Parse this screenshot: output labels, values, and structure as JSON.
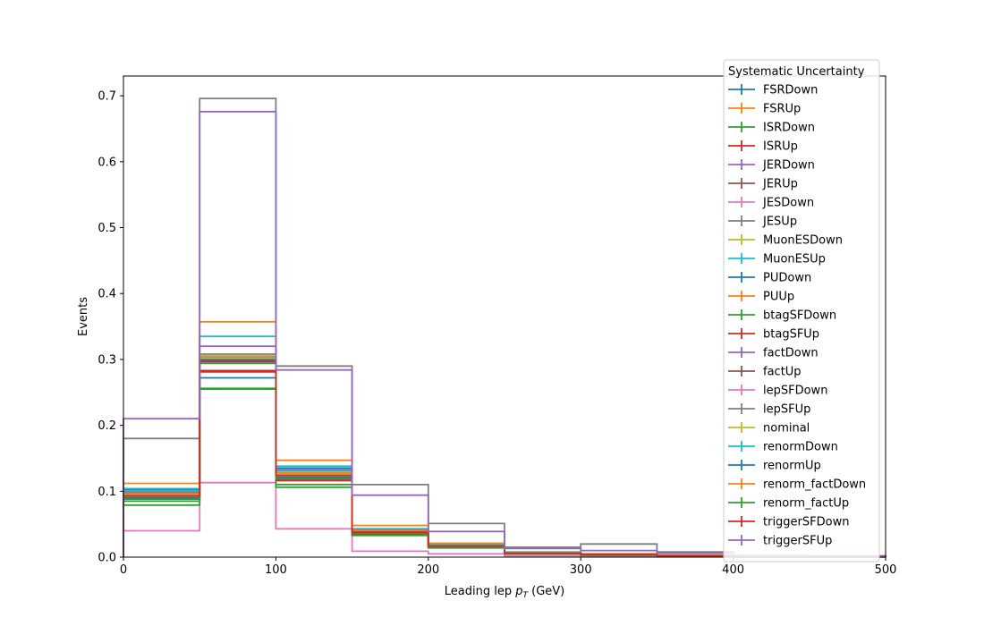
{
  "chart_data": {
    "type": "step-histogram",
    "xlabel_prefix": "Leading lep ",
    "xlabel_var": "p",
    "xlabel_sub": "T",
    "xlabel_suffix": " (GeV)",
    "ylabel": "Events",
    "xlim": [
      0,
      500
    ],
    "ylim": [
      0,
      0.73
    ],
    "xticks": [
      0,
      100,
      200,
      300,
      400,
      500
    ],
    "yticks": [
      0.0,
      0.1,
      0.2,
      0.3,
      0.4,
      0.5,
      0.6,
      0.7
    ],
    "xtick_labels": [
      "0",
      "100",
      "200",
      "300",
      "400",
      "500"
    ],
    "ytick_labels": [
      "0.0",
      "0.1",
      "0.2",
      "0.3",
      "0.4",
      "0.5",
      "0.6",
      "0.7"
    ],
    "bin_edges": [
      0,
      50,
      100,
      150,
      200,
      250,
      300,
      350,
      400,
      450,
      500
    ],
    "legend_title": "Systematic Uncertainty",
    "legend_position": "upper-right",
    "series": [
      {
        "name": "FSRDown",
        "color": "#1f77b4",
        "values": [
          0.095,
          0.272,
          0.12,
          0.036,
          0.016,
          0.006,
          0.004,
          0.002,
          0.001,
          0.001
        ]
      },
      {
        "name": "FSRUp",
        "color": "#ff7f0e",
        "values": [
          0.1,
          0.3,
          0.125,
          0.04,
          0.018,
          0.007,
          0.004,
          0.002,
          0.001,
          0.001
        ]
      },
      {
        "name": "ISRDown",
        "color": "#2ca02c",
        "values": [
          0.085,
          0.256,
          0.11,
          0.034,
          0.015,
          0.005,
          0.003,
          0.002,
          0.001,
          0.001
        ]
      },
      {
        "name": "ISRUp",
        "color": "#d62728",
        "values": [
          0.09,
          0.283,
          0.118,
          0.037,
          0.016,
          0.006,
          0.004,
          0.002,
          0.001,
          0.001
        ]
      },
      {
        "name": "JERDown",
        "color": "#9467bd",
        "values": [
          0.097,
          0.3,
          0.125,
          0.039,
          0.017,
          0.006,
          0.004,
          0.002,
          0.001,
          0.001
        ]
      },
      {
        "name": "JERUp",
        "color": "#8c564b",
        "values": [
          0.095,
          0.295,
          0.123,
          0.038,
          0.017,
          0.006,
          0.004,
          0.002,
          0.001,
          0.001
        ]
      },
      {
        "name": "JESDown",
        "color": "#e377c2",
        "values": [
          0.04,
          0.113,
          0.043,
          0.009,
          0.005,
          0.002,
          0.001,
          0.001,
          0.0,
          0.0
        ]
      },
      {
        "name": "JESUp",
        "color": "#7f7f7f",
        "values": [
          0.18,
          0.696,
          0.29,
          0.11,
          0.051,
          0.015,
          0.02,
          0.008,
          0.003,
          0.002
        ]
      },
      {
        "name": "MuonESDown",
        "color": "#bcbd22",
        "values": [
          0.093,
          0.298,
          0.122,
          0.038,
          0.017,
          0.006,
          0.004,
          0.002,
          0.001,
          0.001
        ]
      },
      {
        "name": "MuonESUp",
        "color": "#17becf",
        "values": [
          0.104,
          0.335,
          0.138,
          0.043,
          0.019,
          0.007,
          0.005,
          0.002,
          0.001,
          0.001
        ]
      },
      {
        "name": "PUDown",
        "color": "#1f77b4",
        "values": [
          0.102,
          0.302,
          0.135,
          0.041,
          0.018,
          0.007,
          0.004,
          0.002,
          0.001,
          0.001
        ]
      },
      {
        "name": "PUUp",
        "color": "#ff7f0e",
        "values": [
          0.112,
          0.357,
          0.147,
          0.048,
          0.021,
          0.008,
          0.005,
          0.003,
          0.001,
          0.001
        ]
      },
      {
        "name": "btagSFDown",
        "color": "#2ca02c",
        "values": [
          0.079,
          0.255,
          0.106,
          0.033,
          0.014,
          0.005,
          0.003,
          0.002,
          0.001,
          0.001
        ]
      },
      {
        "name": "btagSFUp",
        "color": "#d62728",
        "values": [
          0.091,
          0.281,
          0.116,
          0.036,
          0.016,
          0.006,
          0.004,
          0.002,
          0.001,
          0.001
        ]
      },
      {
        "name": "factDown",
        "color": "#9467bd",
        "values": [
          0.099,
          0.32,
          0.133,
          0.041,
          0.018,
          0.007,
          0.004,
          0.002,
          0.001,
          0.001
        ]
      },
      {
        "name": "factUp",
        "color": "#8c564b",
        "values": [
          0.094,
          0.302,
          0.126,
          0.039,
          0.017,
          0.006,
          0.004,
          0.002,
          0.001,
          0.001
        ]
      },
      {
        "name": "lepSFDown",
        "color": "#e377c2",
        "values": [
          0.092,
          0.296,
          0.123,
          0.038,
          0.017,
          0.006,
          0.004,
          0.002,
          0.001,
          0.001
        ]
      },
      {
        "name": "lepSFUp",
        "color": "#7f7f7f",
        "values": [
          0.098,
          0.308,
          0.128,
          0.04,
          0.018,
          0.006,
          0.004,
          0.002,
          0.001,
          0.001
        ]
      },
      {
        "name": "nominal",
        "color": "#bcbd22",
        "values": [
          0.095,
          0.302,
          0.126,
          0.039,
          0.017,
          0.006,
          0.004,
          0.002,
          0.001,
          0.001
        ]
      },
      {
        "name": "renormDown",
        "color": "#17becf",
        "values": [
          0.101,
          0.304,
          0.131,
          0.04,
          0.018,
          0.007,
          0.004,
          0.002,
          0.001,
          0.001
        ]
      },
      {
        "name": "renormUp",
        "color": "#1f77b4",
        "values": [
          0.09,
          0.299,
          0.121,
          0.038,
          0.017,
          0.006,
          0.004,
          0.002,
          0.001,
          0.001
        ]
      },
      {
        "name": "renorm_factDown",
        "color": "#ff7f0e",
        "values": [
          0.096,
          0.305,
          0.128,
          0.04,
          0.017,
          0.006,
          0.004,
          0.002,
          0.001,
          0.001
        ]
      },
      {
        "name": "renorm_factUp",
        "color": "#2ca02c",
        "values": [
          0.088,
          0.294,
          0.119,
          0.037,
          0.016,
          0.006,
          0.004,
          0.002,
          0.001,
          0.001
        ]
      },
      {
        "name": "triggerSFDown",
        "color": "#d62728",
        "values": [
          0.093,
          0.297,
          0.124,
          0.038,
          0.017,
          0.006,
          0.004,
          0.002,
          0.001,
          0.001
        ]
      },
      {
        "name": "triggerSFUp",
        "color": "#9467bd",
        "values": [
          0.21,
          0.676,
          0.284,
          0.094,
          0.039,
          0.013,
          0.01,
          0.006,
          0.002,
          0.001
        ]
      }
    ]
  }
}
